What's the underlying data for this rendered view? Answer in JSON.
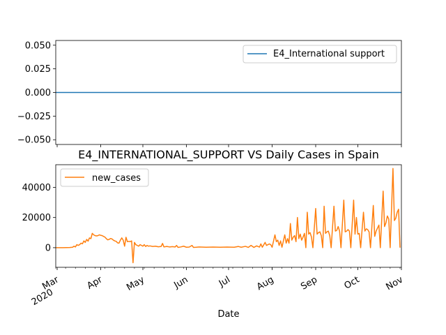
{
  "chart_data": [
    {
      "type": "line",
      "title": "",
      "xlabel": "",
      "ylabel": "",
      "ylim": [
        -0.055,
        0.055
      ],
      "yticks": [
        "−0.050",
        "−0.025",
        "0.000",
        "0.025",
        "0.050"
      ],
      "ytick_values": [
        -0.05,
        -0.025,
        0.0,
        0.025,
        0.05
      ],
      "legend_position": "top-right",
      "grid": false,
      "series": [
        {
          "name": "E4_International support",
          "color": "#1f77b4",
          "x": [
            "2020-02-29",
            "2020-11-01"
          ],
          "values": [
            0,
            0
          ]
        }
      ]
    },
    {
      "type": "line",
      "title": "E4_INTERNATIONAL_SUPPORT VS Daily Cases in Spain",
      "xlabel": "Date",
      "ylabel": "",
      "ylim": [
        -13000,
        55000
      ],
      "yticks": [
        "0",
        "20000",
        "40000"
      ],
      "ytick_values": [
        0,
        20000,
        40000
      ],
      "xlim": [
        "2020-02-29",
        "2020-11-01"
      ],
      "xticks": [
        {
          "date": "2020-03-01",
          "label": "Mar",
          "sublabel": "2020"
        },
        {
          "date": "2020-04-01",
          "label": "Apr"
        },
        {
          "date": "2020-05-01",
          "label": "May"
        },
        {
          "date": "2020-06-01",
          "label": "Jun"
        },
        {
          "date": "2020-07-01",
          "label": "Jul"
        },
        {
          "date": "2020-08-01",
          "label": "Aug"
        },
        {
          "date": "2020-09-01",
          "label": "Sep"
        },
        {
          "date": "2020-10-01",
          "label": "Oct"
        },
        {
          "date": "2020-11-01",
          "label": "Nov"
        }
      ],
      "legend_position": "top-left",
      "grid": false,
      "series": [
        {
          "name": "new_cases",
          "color": "#ff7f0e",
          "points": [
            [
              "2020-02-29",
              0
            ],
            [
              "2020-03-05",
              0
            ],
            [
              "2020-03-10",
              100
            ],
            [
              "2020-03-12",
              300
            ],
            [
              "2020-03-13",
              1000
            ],
            [
              "2020-03-14",
              500
            ],
            [
              "2020-03-15",
              2000
            ],
            [
              "2020-03-16",
              1500
            ],
            [
              "2020-03-17",
              2000
            ],
            [
              "2020-03-18",
              3000
            ],
            [
              "2020-03-19",
              2600
            ],
            [
              "2020-03-20",
              4500
            ],
            [
              "2020-03-21",
              3500
            ],
            [
              "2020-03-22",
              5500
            ],
            [
              "2020-03-23",
              4300
            ],
            [
              "2020-03-24",
              6500
            ],
            [
              "2020-03-25",
              6000
            ],
            [
              "2020-03-26",
              9500
            ],
            [
              "2020-03-27",
              8500
            ],
            [
              "2020-03-28",
              8000
            ],
            [
              "2020-03-29",
              7800
            ],
            [
              "2020-03-30",
              8000
            ],
            [
              "2020-03-31",
              8500
            ],
            [
              "2020-04-01",
              8200
            ],
            [
              "2020-04-02",
              8000
            ],
            [
              "2020-04-03",
              7500
            ],
            [
              "2020-04-04",
              7000
            ],
            [
              "2020-04-05",
              6000
            ],
            [
              "2020-04-06",
              5200
            ],
            [
              "2020-04-07",
              5500
            ],
            [
              "2020-04-08",
              6100
            ],
            [
              "2020-04-09",
              5800
            ],
            [
              "2020-04-10",
              5000
            ],
            [
              "2020-04-11",
              4500
            ],
            [
              "2020-04-12",
              4200
            ],
            [
              "2020-04-13",
              3200
            ],
            [
              "2020-04-14",
              3000
            ],
            [
              "2020-04-15",
              5000
            ],
            [
              "2020-04-16",
              6500
            ],
            [
              "2020-04-17",
              5000
            ],
            [
              "2020-04-18",
              1000
            ],
            [
              "2020-04-19",
              6900
            ],
            [
              "2020-04-20",
              4000
            ],
            [
              "2020-04-21",
              4200
            ],
            [
              "2020-04-22",
              4000
            ],
            [
              "2020-04-23",
              4500
            ],
            [
              "2020-04-24",
              -10000
            ],
            [
              "2020-04-25",
              3500
            ],
            [
              "2020-04-26",
              2000
            ],
            [
              "2020-04-27",
              1500
            ],
            [
              "2020-04-28",
              1000
            ],
            [
              "2020-04-29",
              2000
            ],
            [
              "2020-04-30",
              1500
            ],
            [
              "2020-05-01",
              1000
            ],
            [
              "2020-05-02",
              2000
            ],
            [
              "2020-05-03",
              800
            ],
            [
              "2020-05-04",
              1500
            ],
            [
              "2020-05-05",
              1000
            ],
            [
              "2020-05-06",
              1200
            ],
            [
              "2020-05-08",
              800
            ],
            [
              "2020-05-10",
              1000
            ],
            [
              "2020-05-12",
              600
            ],
            [
              "2020-05-14",
              800
            ],
            [
              "2020-05-15",
              2800
            ],
            [
              "2020-05-16",
              500
            ],
            [
              "2020-05-18",
              800
            ],
            [
              "2020-05-20",
              500
            ],
            [
              "2020-05-22",
              700
            ],
            [
              "2020-05-24",
              500
            ],
            [
              "2020-05-25",
              1500
            ],
            [
              "2020-05-26",
              200
            ],
            [
              "2020-05-28",
              500
            ],
            [
              "2020-05-30",
              1000
            ],
            [
              "2020-06-01",
              300
            ],
            [
              "2020-06-03",
              400
            ],
            [
              "2020-06-05",
              1500
            ],
            [
              "2020-06-06",
              200
            ],
            [
              "2020-06-08",
              300
            ],
            [
              "2020-06-10",
              500
            ],
            [
              "2020-06-15",
              300
            ],
            [
              "2020-06-20",
              400
            ],
            [
              "2020-06-25",
              300
            ],
            [
              "2020-06-30",
              400
            ],
            [
              "2020-07-05",
              300
            ],
            [
              "2020-07-08",
              800
            ],
            [
              "2020-07-10",
              300
            ],
            [
              "2020-07-13",
              900
            ],
            [
              "2020-07-15",
              200
            ],
            [
              "2020-07-17",
              1500
            ],
            [
              "2020-07-19",
              200
            ],
            [
              "2020-07-21",
              1200
            ],
            [
              "2020-07-23",
              400
            ],
            [
              "2020-07-24",
              2500
            ],
            [
              "2020-07-25",
              300
            ],
            [
              "2020-07-27",
              3500
            ],
            [
              "2020-07-28",
              1500
            ],
            [
              "2020-07-29",
              2000
            ],
            [
              "2020-07-30",
              2500
            ],
            [
              "2020-07-31",
              2000
            ],
            [
              "2020-08-01",
              300
            ],
            [
              "2020-08-03",
              8500
            ],
            [
              "2020-08-04",
              4000
            ],
            [
              "2020-08-05",
              5000
            ],
            [
              "2020-08-06",
              1500
            ],
            [
              "2020-08-07",
              4500
            ],
            [
              "2020-08-08",
              300
            ],
            [
              "2020-08-10",
              8500
            ],
            [
              "2020-08-11",
              3000
            ],
            [
              "2020-08-12",
              6000
            ],
            [
              "2020-08-13",
              3000
            ],
            [
              "2020-08-14",
              16000
            ],
            [
              "2020-08-15",
              5000
            ],
            [
              "2020-08-16",
              7000
            ],
            [
              "2020-08-17",
              8000
            ],
            [
              "2020-08-18",
              4000
            ],
            [
              "2020-08-19",
              20000
            ],
            [
              "2020-08-20",
              6000
            ],
            [
              "2020-08-21",
              9000
            ],
            [
              "2020-08-22",
              5000
            ],
            [
              "2020-08-23",
              7000
            ],
            [
              "2020-08-24",
              9500
            ],
            [
              "2020-08-25",
              0
            ],
            [
              "2020-08-26",
              23500
            ],
            [
              "2020-08-27",
              9000
            ],
            [
              "2020-08-28",
              10000
            ],
            [
              "2020-08-29",
              7000
            ],
            [
              "2020-08-30",
              0
            ],
            [
              "2020-09-01",
              26000
            ],
            [
              "2020-09-02",
              9000
            ],
            [
              "2020-09-03",
              10000
            ],
            [
              "2020-09-04",
              10500
            ],
            [
              "2020-09-05",
              8000
            ],
            [
              "2020-09-06",
              0
            ],
            [
              "2020-09-07",
              27500
            ],
            [
              "2020-09-08",
              9500
            ],
            [
              "2020-09-09",
              10500
            ],
            [
              "2020-09-10",
              11000
            ],
            [
              "2020-09-11",
              8000
            ],
            [
              "2020-09-12",
              0
            ],
            [
              "2020-09-14",
              27500
            ],
            [
              "2020-09-15",
              11000
            ],
            [
              "2020-09-16",
              11500
            ],
            [
              "2020-09-17",
              14000
            ],
            [
              "2020-09-18",
              11000
            ],
            [
              "2020-09-19",
              0
            ],
            [
              "2020-09-21",
              31500
            ],
            [
              "2020-09-22",
              10500
            ],
            [
              "2020-09-23",
              11000
            ],
            [
              "2020-09-24",
              12000
            ],
            [
              "2020-09-25",
              11000
            ],
            [
              "2020-09-26",
              0
            ],
            [
              "2020-09-28",
              31500
            ],
            [
              "2020-09-29",
              9000
            ],
            [
              "2020-09-30",
              20000
            ],
            [
              "2020-10-01",
              9000
            ],
            [
              "2020-10-02",
              9500
            ],
            [
              "2020-10-03",
              0
            ],
            [
              "2020-10-05",
              23500
            ],
            [
              "2020-10-06",
              11000
            ],
            [
              "2020-10-07",
              12500
            ],
            [
              "2020-10-08",
              12000
            ],
            [
              "2020-10-09",
              10500
            ],
            [
              "2020-10-10",
              0
            ],
            [
              "2020-10-12",
              28000
            ],
            [
              "2020-10-13",
              7500
            ],
            [
              "2020-10-14",
              11000
            ],
            [
              "2020-10-15",
              13000
            ],
            [
              "2020-10-16",
              15000
            ],
            [
              "2020-10-17",
              0
            ],
            [
              "2020-10-19",
              37500
            ],
            [
              "2020-10-20",
              14000
            ],
            [
              "2020-10-21",
              16500
            ],
            [
              "2020-10-22",
              21000
            ],
            [
              "2020-10-23",
              19000
            ],
            [
              "2020-10-24",
              0
            ],
            [
              "2020-10-26",
              52500
            ],
            [
              "2020-10-27",
              18000
            ],
            [
              "2020-10-28",
              19500
            ],
            [
              "2020-10-29",
              23500
            ],
            [
              "2020-10-30",
              25500
            ],
            [
              "2020-10-31",
              0
            ]
          ]
        }
      ]
    }
  ]
}
